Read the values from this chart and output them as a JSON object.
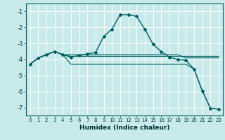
{
  "xlabel": "Humidex (Indice chaleur)",
  "bg_color": "#c8eaea",
  "grid_color": "#ffffff",
  "line_color": "#006060",
  "xlim": [
    -0.5,
    23.5
  ],
  "ylim": [
    -7.5,
    -0.5
  ],
  "xticks": [
    0,
    1,
    2,
    3,
    4,
    5,
    6,
    7,
    8,
    9,
    10,
    11,
    12,
    13,
    14,
    15,
    16,
    17,
    18,
    19,
    20,
    21,
    22,
    23
  ],
  "yticks": [
    -1,
    -2,
    -3,
    -4,
    -5,
    -6,
    -7
  ],
  "series": [
    {
      "x": [
        0,
        1,
        2,
        3,
        4,
        5,
        6,
        7,
        8,
        9,
        10,
        11,
        12,
        13,
        14,
        15,
        16,
        17,
        18,
        19,
        20,
        21,
        22,
        23
      ],
      "y": [
        -4.3,
        -3.9,
        -3.7,
        -3.5,
        -3.7,
        -3.85,
        -3.75,
        -3.65,
        -3.55,
        -2.55,
        -2.1,
        -1.2,
        -1.2,
        -1.3,
        -2.1,
        -3.05,
        -3.5,
        -3.85,
        -4.0,
        -4.05,
        -4.6,
        -5.95,
        -7.05,
        -7.1
      ],
      "marker": "D",
      "markersize": 2.0,
      "linewidth": 1.0,
      "with_marker": true
    },
    {
      "x": [
        0,
        1,
        2,
        3,
        4,
        5,
        6,
        7,
        8,
        9,
        10,
        11,
        12,
        13,
        14,
        15,
        16,
        17,
        18,
        19,
        20,
        21,
        22,
        23
      ],
      "y": [
        -4.3,
        -3.9,
        -3.7,
        -3.5,
        -3.7,
        -3.7,
        -3.7,
        -3.7,
        -3.7,
        -3.7,
        -3.7,
        -3.7,
        -3.7,
        -3.7,
        -3.7,
        -3.7,
        -3.7,
        -3.7,
        -3.7,
        -3.9,
        -3.9,
        -3.9,
        -3.9,
        -3.9
      ],
      "marker": null,
      "linewidth": 0.8,
      "with_marker": false
    },
    {
      "x": [
        0,
        1,
        2,
        3,
        4,
        5,
        6,
        7,
        8,
        9,
        10,
        11,
        12,
        13,
        14,
        15,
        16,
        17,
        18,
        19,
        20,
        21,
        22,
        23
      ],
      "y": [
        -4.3,
        -3.9,
        -3.7,
        -3.5,
        -3.7,
        -3.8,
        -3.8,
        -3.8,
        -3.8,
        -3.8,
        -3.8,
        -3.8,
        -3.8,
        -3.8,
        -3.8,
        -3.8,
        -3.8,
        -3.8,
        -3.8,
        -3.8,
        -3.8,
        -3.8,
        -3.8,
        -3.8
      ],
      "marker": null,
      "linewidth": 0.8,
      "with_marker": false
    },
    {
      "x": [
        0,
        1,
        2,
        3,
        4,
        5,
        6,
        7,
        8,
        9,
        10,
        11,
        12,
        13,
        14,
        15,
        16,
        17,
        18,
        19,
        20,
        21,
        22,
        23
      ],
      "y": [
        -4.3,
        -3.9,
        -3.7,
        -3.5,
        -3.7,
        -4.3,
        -4.3,
        -4.3,
        -4.3,
        -4.3,
        -4.3,
        -4.3,
        -4.3,
        -4.3,
        -4.3,
        -4.3,
        -4.3,
        -4.3,
        -4.3,
        -4.3,
        -4.6,
        -5.95,
        -7.05,
        -7.1
      ],
      "marker": null,
      "linewidth": 0.8,
      "with_marker": false
    }
  ]
}
